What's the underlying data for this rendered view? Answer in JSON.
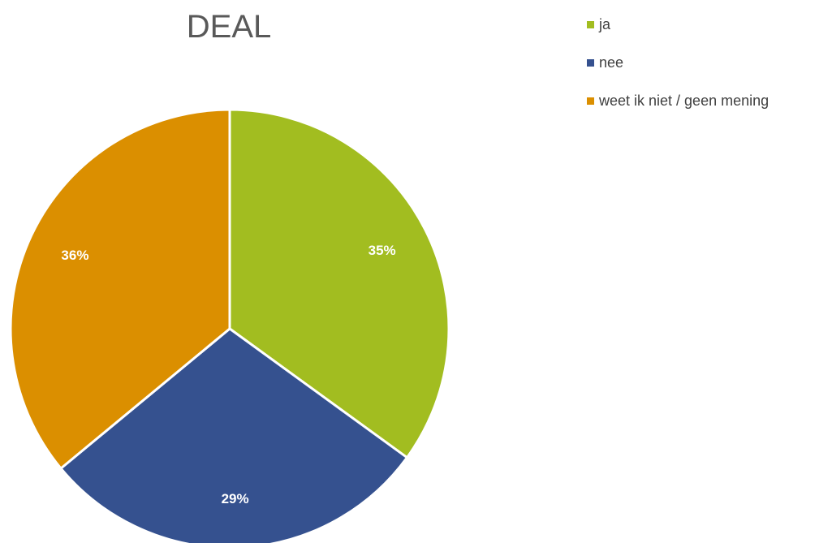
{
  "chart_data": {
    "type": "pie",
    "title": "DEAL",
    "categories": [
      "ja",
      "nee",
      "weet ik niet / geen mening"
    ],
    "values": [
      35,
      29,
      36
    ],
    "value_labels": [
      "35%",
      "29%",
      "36%"
    ],
    "colors": [
      "#a2bd20",
      "#35518f",
      "#db8f00"
    ],
    "legend_position": "top-right"
  }
}
